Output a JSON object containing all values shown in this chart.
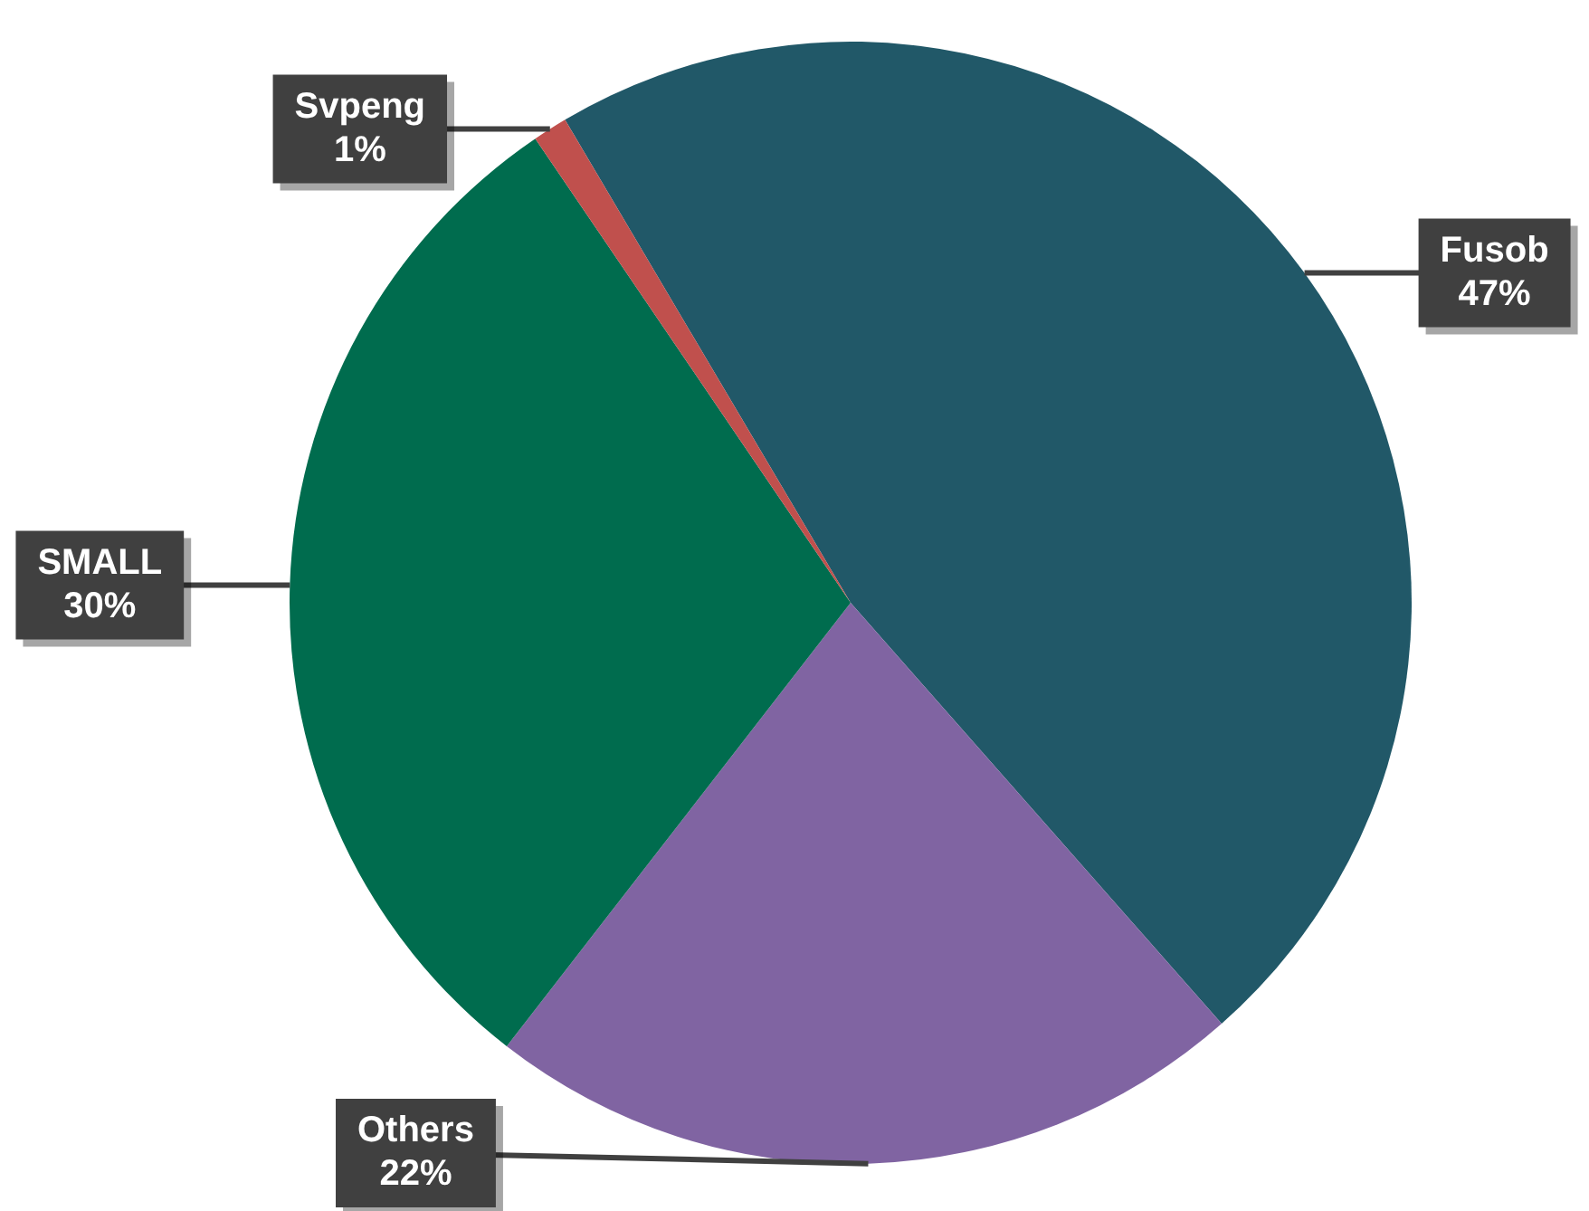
{
  "chart_data": {
    "type": "pie",
    "categories": [
      "Fusob",
      "Others",
      "SMALL",
      "Svpeng"
    ],
    "values": [
      47,
      22,
      30,
      1
    ],
    "value_labels": [
      "47%",
      "22%",
      "30%",
      "1%"
    ],
    "colors": [
      "#215868",
      "#8064a2",
      "#006c4e",
      "#c0504d"
    ],
    "legend": false
  }
}
